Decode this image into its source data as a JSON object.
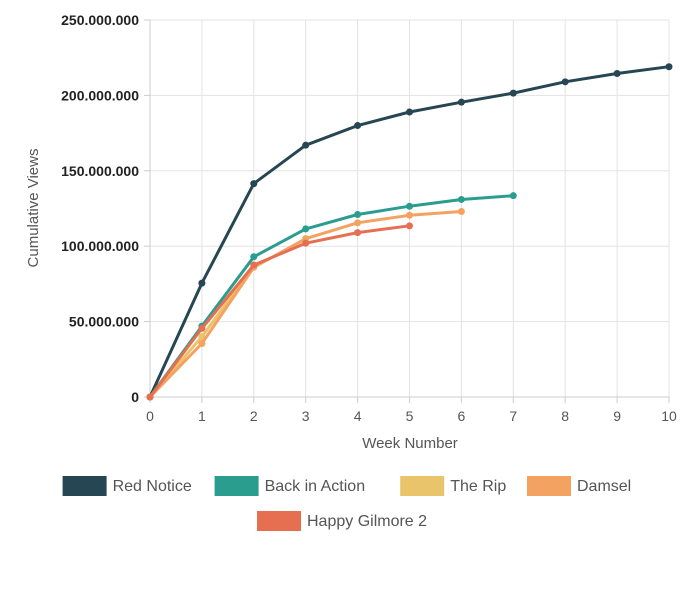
{
  "chart_data": {
    "type": "line",
    "title": "",
    "xlabel": "Week Number",
    "ylabel": "Cumulative Views",
    "xlim": [
      0,
      10
    ],
    "ylim": [
      0,
      250000000
    ],
    "x_ticks": [
      "0",
      "1",
      "2",
      "3",
      "4",
      "5",
      "6",
      "7",
      "8",
      "9",
      "10"
    ],
    "y_ticks": [
      {
        "value": 0,
        "label": "0"
      },
      {
        "value": 50000000,
        "label": "50.000.000"
      },
      {
        "value": 100000000,
        "label": "100.000.000"
      },
      {
        "value": 150000000,
        "label": "150.000.000"
      },
      {
        "value": 200000000,
        "label": "200.000.000"
      },
      {
        "value": 250000000,
        "label": "250.000.000"
      }
    ],
    "grid": true,
    "legend_position": "bottom",
    "series": [
      {
        "name": "Red Notice",
        "color": "#264653",
        "x": [
          0,
          1,
          2,
          3,
          4,
          5,
          6,
          7,
          8,
          9,
          10
        ],
        "values": [
          0,
          75500000,
          141500000,
          167000000,
          180000000,
          189000000,
          195500000,
          201500000,
          209000000,
          214500000,
          219000000
        ]
      },
      {
        "name": "Back in Action",
        "color": "#2a9d8f",
        "x": [
          0,
          1,
          2,
          3,
          4,
          5,
          6,
          7
        ],
        "values": [
          0,
          47000000,
          93000000,
          111500000,
          121000000,
          126500000,
          131000000,
          133500000
        ]
      },
      {
        "name": "The Rip",
        "color": "#e9c46a",
        "x": [
          0,
          1,
          2
        ],
        "values": [
          0,
          40000000,
          87000000
        ]
      },
      {
        "name": "Damsel",
        "color": "#f4a261",
        "x": [
          0,
          1,
          2,
          3,
          4,
          5,
          6
        ],
        "values": [
          0,
          35500000,
          86000000,
          105000000,
          115500000,
          120500000,
          123000000
        ]
      },
      {
        "name": "Happy Gilmore 2",
        "color": "#e76f51",
        "x": [
          0,
          1,
          2,
          3,
          4,
          5
        ],
        "values": [
          0,
          45500000,
          87500000,
          102000000,
          109000000,
          113500000
        ]
      }
    ]
  }
}
